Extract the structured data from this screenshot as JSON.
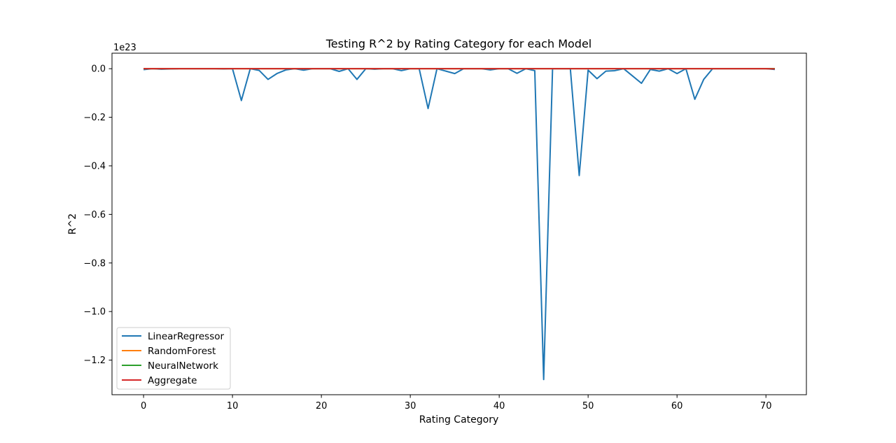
{
  "chart_data": {
    "type": "line",
    "title": "Testing R^2 by Rating Category for each Model",
    "xlabel": "Rating Category",
    "ylabel": "R^2",
    "y_offset_label": "1e23",
    "y_unit_scale": 1e+23,
    "xlim": [
      -3.55,
      74.55
    ],
    "ylim": [
      -1.3425,
      0.0639
    ],
    "x_ticks": [
      0,
      10,
      20,
      30,
      40,
      50,
      60,
      70
    ],
    "y_ticks": [
      0.0,
      -0.2,
      -0.4,
      -0.6,
      -0.8,
      -1.0,
      -1.2
    ],
    "y_tick_labels": [
      "0.0",
      "−0.2",
      "−0.4",
      "−0.6",
      "−0.8",
      "−1.0",
      "−1.2"
    ],
    "grid": false,
    "legend_position": "lower-left",
    "x": [
      0,
      1,
      2,
      3,
      4,
      5,
      6,
      7,
      8,
      9,
      10,
      11,
      12,
      13,
      14,
      15,
      16,
      17,
      18,
      19,
      20,
      21,
      22,
      23,
      24,
      25,
      26,
      27,
      28,
      29,
      30,
      31,
      32,
      33,
      34,
      35,
      36,
      37,
      38,
      39,
      40,
      41,
      42,
      43,
      44,
      45,
      46,
      47,
      48,
      49,
      50,
      51,
      52,
      53,
      54,
      55,
      56,
      57,
      58,
      59,
      60,
      61,
      62,
      63,
      64,
      65,
      66,
      67,
      68,
      69,
      70,
      71
    ],
    "series": [
      {
        "name": "LinearRegressor",
        "color": "#1f77b4",
        "values": [
          -0.004,
          0,
          -0.002,
          -0.001,
          0,
          0,
          0,
          0,
          0,
          -0.001,
          0,
          -0.131,
          0,
          -0.007,
          -0.044,
          -0.02,
          -0.005,
          0,
          -0.006,
          0,
          0,
          0,
          -0.011,
          0,
          -0.044,
          0,
          -0.002,
          0,
          0,
          -0.008,
          0,
          0,
          -0.164,
          0,
          -0.01,
          -0.02,
          0,
          0,
          0,
          -0.005,
          0,
          0,
          -0.019,
          0,
          -0.008,
          -1.28,
          0,
          0,
          0,
          -0.44,
          -0.006,
          -0.041,
          -0.01,
          -0.008,
          0,
          -0.03,
          -0.06,
          -0.003,
          -0.01,
          0,
          -0.02,
          0,
          -0.126,
          -0.044,
          0,
          0,
          0,
          0,
          0,
          0,
          0,
          -0.003
        ]
      },
      {
        "name": "RandomForest",
        "color": "#ff7f0e",
        "values": [
          0,
          0,
          0,
          0,
          0,
          0,
          0,
          0,
          0,
          0,
          0,
          0,
          0,
          0,
          0,
          0,
          0,
          0,
          0,
          0,
          0,
          0,
          0,
          0,
          0,
          0,
          0,
          0,
          0,
          0,
          0,
          0,
          0,
          0,
          0,
          0,
          0,
          0,
          0,
          0,
          0,
          0,
          0,
          0,
          0,
          0,
          0,
          0,
          0,
          0,
          0,
          0,
          0,
          0,
          0,
          0,
          0,
          0,
          0,
          0,
          0,
          0,
          0,
          0,
          0,
          0,
          0,
          0,
          0,
          0,
          0,
          0
        ]
      },
      {
        "name": "NeuralNetwork",
        "color": "#2ca02c",
        "values": [
          0,
          0,
          0,
          0,
          0,
          0,
          0,
          0,
          0,
          0,
          0,
          0,
          0,
          0,
          0,
          0,
          0,
          0,
          0,
          0,
          0,
          0,
          0,
          0,
          0,
          0,
          0,
          0,
          0,
          0,
          0,
          0,
          0,
          0,
          0,
          0,
          0,
          0,
          0,
          0,
          0,
          0,
          0,
          0,
          0,
          0,
          0,
          0,
          0,
          0,
          0,
          0,
          0,
          0,
          0,
          0,
          0,
          0,
          0,
          0,
          0,
          0,
          0,
          0,
          0,
          0,
          0,
          0,
          0,
          0,
          0,
          0
        ]
      },
      {
        "name": "Aggregate",
        "color": "#d62728",
        "values": [
          0,
          0,
          0,
          0,
          0,
          0,
          0,
          0,
          0,
          0,
          0,
          0,
          0,
          0,
          0,
          0,
          0,
          0,
          0,
          0,
          0,
          0,
          0,
          0,
          0,
          0,
          0,
          0,
          0,
          0,
          0,
          0,
          0,
          0,
          0,
          0,
          0,
          0,
          0,
          0,
          0,
          0,
          0,
          0,
          0,
          0,
          0,
          0,
          0,
          0,
          0,
          0,
          0,
          0,
          0,
          0,
          0,
          0,
          0,
          0,
          0,
          0,
          0,
          0,
          0,
          0,
          0,
          0,
          0,
          0,
          0,
          -0.001
        ]
      }
    ]
  }
}
